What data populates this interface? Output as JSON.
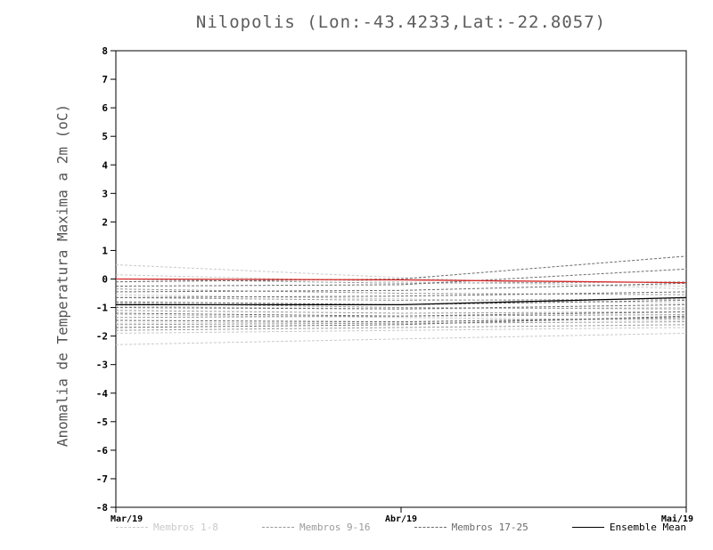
{
  "title": "Nilopolis (Lon:-43.4233,Lat:-22.8057)",
  "chart_data": {
    "type": "line",
    "title": "Nilopolis (Lon:-43.4233,Lat:-22.8057)",
    "xlabel": "",
    "ylabel": "Anomalia de Temperatura Maxima a 2m (oC)",
    "ylim": [
      -8,
      8
    ],
    "ytick_step": 1,
    "grid": false,
    "legend_position": "bottom",
    "x_labels": [
      "Mar/19",
      "Abr/19",
      "Mai/19"
    ],
    "x": [
      0,
      1,
      2
    ],
    "groups": [
      {
        "name": "Membros 1-8",
        "color": "#c9c9c9",
        "dash": true,
        "series": [
          [
            0.5,
            0.05,
            -0.35
          ],
          [
            0.15,
            -0.1,
            -0.25
          ],
          [
            -0.55,
            -0.7,
            -0.85
          ],
          [
            -0.95,
            -1.05,
            -1.0
          ],
          [
            -1.25,
            -1.35,
            -1.45
          ],
          [
            -1.55,
            -1.5,
            -1.4
          ],
          [
            -1.9,
            -1.8,
            -1.7
          ],
          [
            -2.3,
            -2.1,
            -1.9
          ]
        ]
      },
      {
        "name": "Membros 9-16",
        "color": "#9a9a9a",
        "dash": true,
        "series": [
          [
            0.0,
            -0.15,
            -0.1
          ],
          [
            -0.35,
            -0.5,
            -0.55
          ],
          [
            -0.65,
            -0.75,
            -0.7
          ],
          [
            -0.85,
            -1.0,
            -1.05
          ],
          [
            -1.1,
            -1.2,
            -1.15
          ],
          [
            -1.35,
            -1.3,
            -1.25
          ],
          [
            -1.6,
            -1.55,
            -1.5
          ],
          [
            -1.8,
            -1.7,
            -1.6
          ]
        ]
      },
      {
        "name": "Membros 17-25",
        "color": "#6b6b6b",
        "dash": true,
        "series": [
          [
            -0.1,
            0.0,
            0.8
          ],
          [
            -0.25,
            -0.2,
            0.35
          ],
          [
            -0.45,
            -0.4,
            -0.15
          ],
          [
            -0.65,
            -0.6,
            -0.45
          ],
          [
            -0.8,
            -0.9,
            -0.75
          ],
          [
            -1.0,
            -1.05,
            -0.9
          ],
          [
            -1.2,
            -1.3,
            -1.15
          ],
          [
            -1.45,
            -1.5,
            -1.35
          ],
          [
            -1.7,
            -1.6,
            -1.3
          ]
        ]
      },
      {
        "name": "Ensemble Mean",
        "color": "#000000",
        "dash": false,
        "series": [
          [
            -0.9,
            -0.9,
            -0.65
          ]
        ]
      },
      {
        "name": "Reference",
        "color": "#d42a2a",
        "dash": false,
        "series": [
          [
            0.0,
            -0.03,
            -0.13
          ]
        ]
      }
    ],
    "legend": [
      {
        "label": "Membros 1-8",
        "color": "#c9c9c9",
        "dash": true
      },
      {
        "label": "Membros 9-16",
        "color": "#9a9a9a",
        "dash": true
      },
      {
        "label": "Membros 17-25",
        "color": "#6b6b6b",
        "dash": true
      },
      {
        "label": "Ensemble Mean",
        "color": "#000000",
        "dash": false
      }
    ],
    "colors": {
      "axis": "#000000",
      "title": "#5c5c5c",
      "tick_label": "#000000",
      "reference_line": "#d42a2a"
    }
  }
}
